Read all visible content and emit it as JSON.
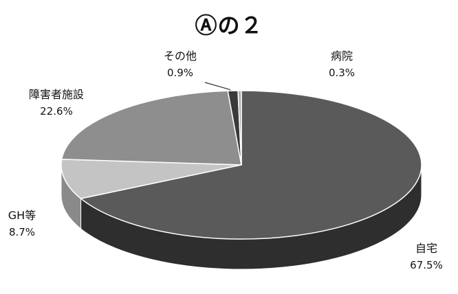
{
  "chart_data": {
    "type": "pie",
    "title": "Ⓐの２",
    "slices": [
      {
        "label": "自宅",
        "value": 67.5,
        "value_label": "67.5%",
        "color": "#5a5a5a",
        "side_color": "#2e2e2e"
      },
      {
        "label": "GH等",
        "value": 8.7,
        "value_label": "8.7%",
        "color": "#c4c4c4",
        "side_color": "#8a8a8a"
      },
      {
        "label": "障害者施設",
        "value": 22.6,
        "value_label": "22.6%",
        "color": "#8e8e8e",
        "side_color": "#5e5e5e"
      },
      {
        "label": "その他",
        "value": 0.9,
        "value_label": "0.9%",
        "color": "#3a3a3a",
        "side_color": "#222222"
      },
      {
        "label": "病院",
        "value": 0.3,
        "value_label": "0.3%",
        "color": "#b0b0b0",
        "side_color": "#7a7a7a"
      }
    ]
  }
}
